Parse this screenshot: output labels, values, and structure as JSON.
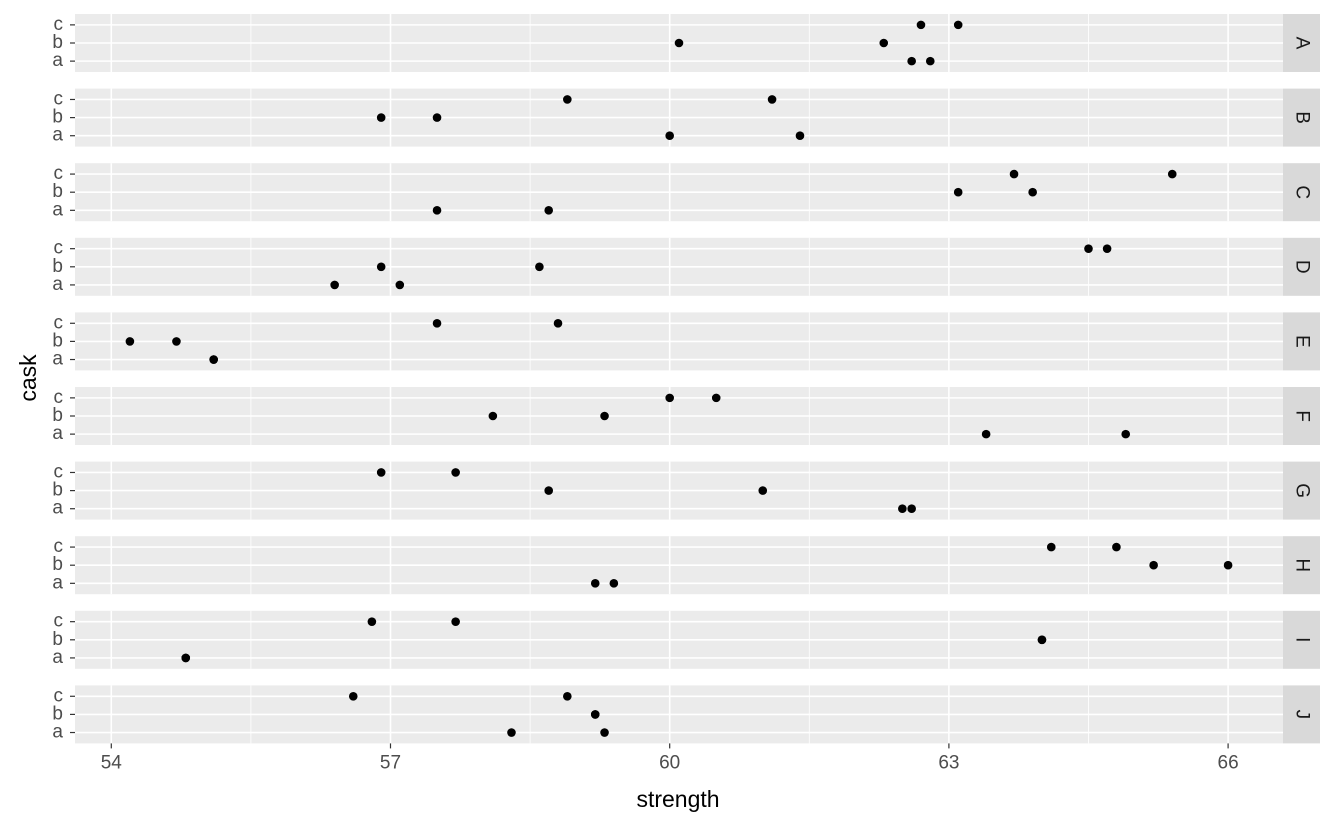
{
  "chart_data": {
    "type": "faceted-dot",
    "xlabel": "strength",
    "ylabel": "cask",
    "xlim": [
      53.61,
      66.59
    ],
    "xticks": [
      54,
      57,
      60,
      63,
      66
    ],
    "minor_xticks": [
      55.5,
      58.5,
      61.5,
      64.5
    ],
    "grid": true,
    "point_color": "#000000",
    "facets": [
      {
        "label": "A",
        "categories": [
          "a",
          "b",
          "c"
        ],
        "values": [
          [
            62.8,
            62.6
          ],
          [
            60.1,
            62.3
          ],
          [
            62.7,
            63.1
          ]
        ]
      },
      {
        "label": "B",
        "categories": [
          "a",
          "b",
          "c"
        ],
        "values": [
          [
            60.0,
            61.4
          ],
          [
            57.5,
            56.9
          ],
          [
            61.1,
            58.9
          ]
        ]
      },
      {
        "label": "C",
        "categories": [
          "a",
          "b",
          "c"
        ],
        "values": [
          [
            58.7,
            57.5
          ],
          [
            63.9,
            63.1
          ],
          [
            65.4,
            63.7
          ]
        ]
      },
      {
        "label": "D",
        "categories": [
          "a",
          "b",
          "c"
        ],
        "values": [
          [
            57.1,
            56.4
          ],
          [
            56.9,
            58.6
          ],
          [
            64.7,
            64.5
          ]
        ]
      },
      {
        "label": "E",
        "categories": [
          "a",
          "b",
          "c"
        ],
        "values": [
          [
            55.1,
            55.1
          ],
          [
            54.7,
            54.2
          ],
          [
            58.8,
            57.5
          ]
        ]
      },
      {
        "label": "F",
        "categories": [
          "a",
          "b",
          "c"
        ],
        "values": [
          [
            63.4,
            64.9
          ],
          [
            59.3,
            58.1
          ],
          [
            60.5,
            60.0
          ]
        ]
      },
      {
        "label": "G",
        "categories": [
          "a",
          "b",
          "c"
        ],
        "values": [
          [
            62.5,
            62.6
          ],
          [
            61.0,
            58.7
          ],
          [
            56.9,
            57.7
          ]
        ]
      },
      {
        "label": "H",
        "categories": [
          "a",
          "b",
          "c"
        ],
        "values": [
          [
            59.2,
            59.4
          ],
          [
            65.2,
            66.0
          ],
          [
            64.8,
            64.1
          ]
        ]
      },
      {
        "label": "I",
        "categories": [
          "a",
          "b",
          "c"
        ],
        "values": [
          [
            54.8,
            54.8
          ],
          [
            64.0,
            64.0
          ],
          [
            57.7,
            56.8
          ]
        ]
      },
      {
        "label": "J",
        "categories": [
          "a",
          "b",
          "c"
        ],
        "values": [
          [
            58.3,
            59.3
          ],
          [
            59.2,
            59.2
          ],
          [
            58.9,
            56.6
          ]
        ]
      }
    ]
  }
}
